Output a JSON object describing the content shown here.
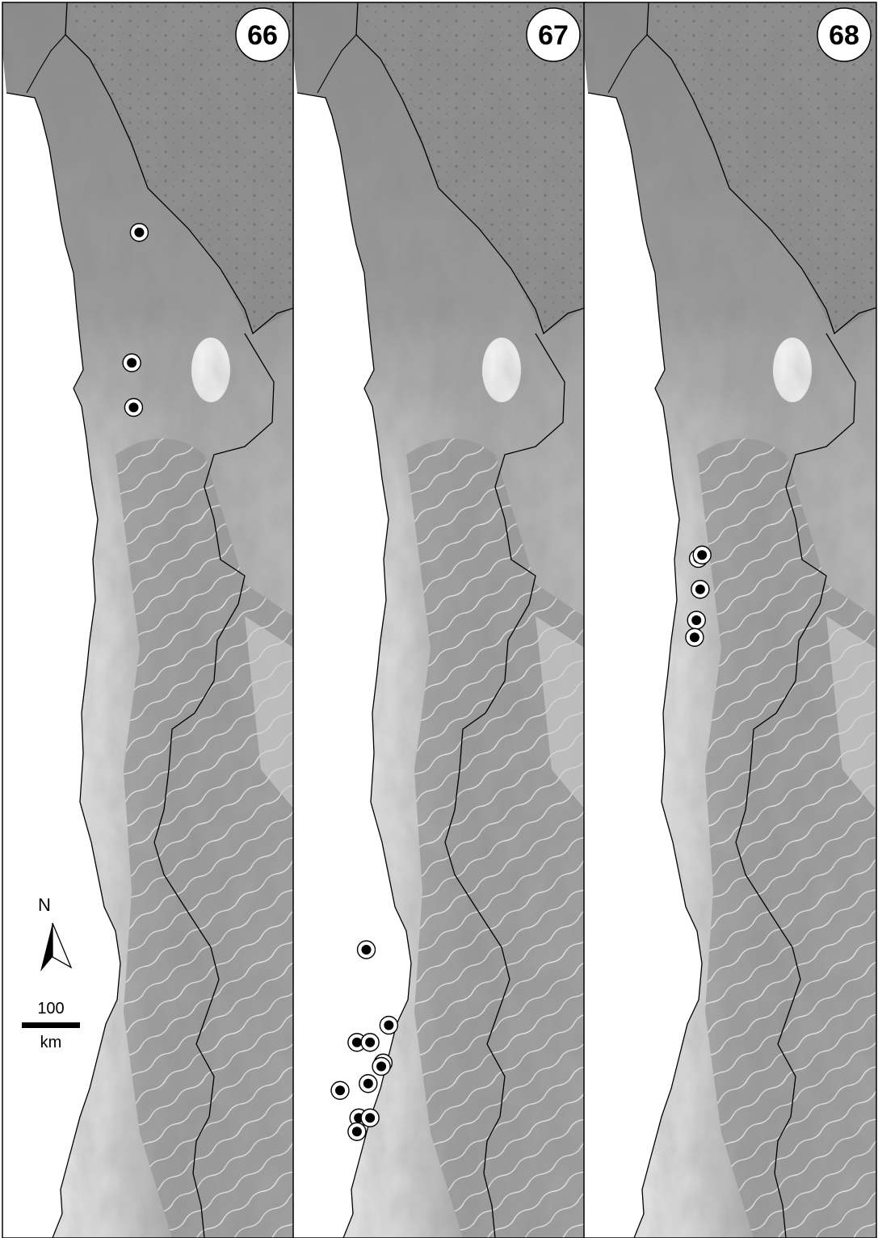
{
  "panels": [
    {
      "number": "66",
      "records": [
        {
          "lat": -29.65,
          "lon": -71.35
        },
        {
          "lat": -31.55,
          "lon": -71.55
        },
        {
          "lat": -32.2,
          "lon": -71.5
        }
      ]
    },
    {
      "number": "67",
      "records": [
        {
          "lat": -40.1,
          "lon": -73.05
        },
        {
          "lat": -41.2,
          "lon": -72.45
        },
        {
          "lat": -41.45,
          "lon": -73.3
        },
        {
          "lat": -41.45,
          "lon": -72.95
        },
        {
          "lat": -41.75,
          "lon": -72.6
        },
        {
          "lat": -41.8,
          "lon": -72.65
        },
        {
          "lat": -42.05,
          "lon": -73.0
        },
        {
          "lat": -42.15,
          "lon": -73.75
        },
        {
          "lat": -42.55,
          "lon": -73.25
        },
        {
          "lat": -42.55,
          "lon": -72.95
        },
        {
          "lat": -42.75,
          "lon": -73.3
        }
      ]
    },
    {
      "number": "68",
      "records": [
        {
          "lat": -34.4,
          "lon": -71.95
        },
        {
          "lat": -34.35,
          "lon": -71.85
        },
        {
          "lat": -34.85,
          "lon": -71.9
        },
        {
          "lat": -35.3,
          "lon": -72.0
        },
        {
          "lat": -35.55,
          "lon": -72.05
        }
      ]
    }
  ],
  "scale_bar": {
    "value": "100",
    "unit": "km"
  },
  "north_arrow": {
    "label": "N",
    "icon": "north-arrow-icon"
  },
  "colors": {
    "marker_fill": "#000000",
    "marker_ring": "#ffffff",
    "border": "#000000",
    "ocean": "#ffffff"
  }
}
